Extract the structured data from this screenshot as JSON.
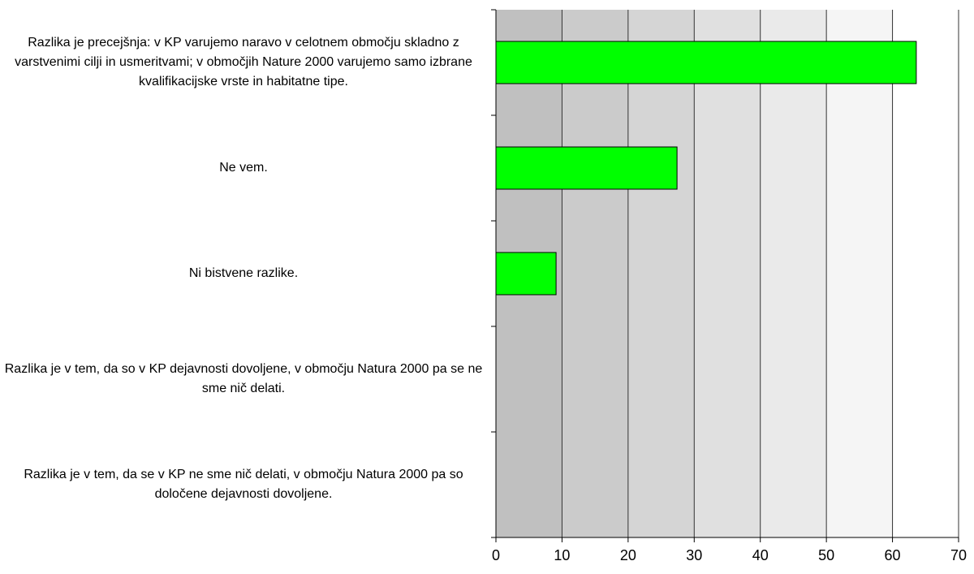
{
  "chart_data": {
    "type": "bar",
    "orientation": "horizontal",
    "categories": [
      "Razlika je precejšnja: v KP varujemo naravo v celotnem območju skladno z varstvenimi cilji in usmeritvami; v območjih Nature 2000 varujemo samo izbrane kvalifikacijske vrste in habitatne tipe.",
      "Ne vem.",
      "Ni bistvene razlike.",
      "Razlika je v tem, da so v KP dejavnosti dovoljene, v območju Natura 2000 pa se ne sme nič delati.",
      "Razlika je v tem, da se v KP ne sme nič delati, v območju Natura 2000 pa so določene dejavnosti dovoljene."
    ],
    "values": [
      63.6,
      27.4,
      9.1,
      0,
      0
    ],
    "color": "#00ff00",
    "xlim": [
      0,
      70
    ],
    "xticks": [
      0,
      10,
      20,
      30,
      40,
      50,
      60,
      70
    ],
    "grid": true
  }
}
